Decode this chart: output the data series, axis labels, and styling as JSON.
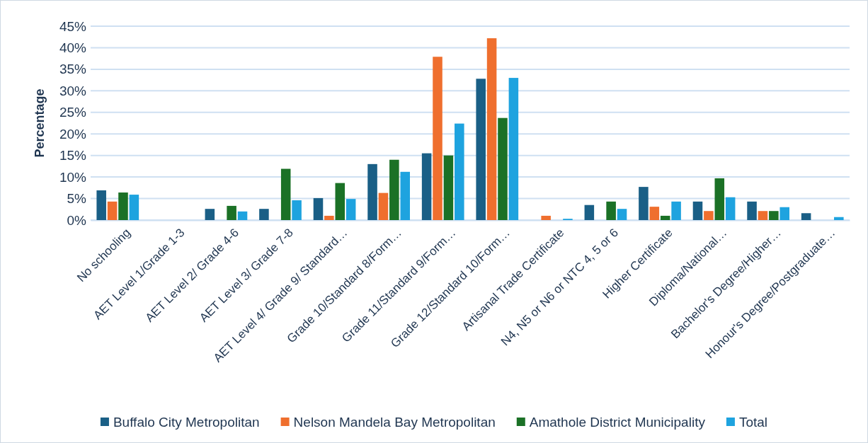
{
  "chart_data": {
    "type": "bar",
    "ylabel": "Percentage",
    "categories": [
      "No schooling",
      "AET Level 1/Grade 1-3",
      "AET Level 2/ Grade 4-6",
      "AET Level 3/ Grade 7-8",
      "AET Level 4/ Grade 9/ Standard…",
      "Grade 10/Standard 8/Form…",
      "Grade 11/Standard 9/Form…",
      "Grade 12/Standard 10/Form…",
      "Artisanal Trade Certificate",
      "N4, N5 or N6 or NTC 4, 5 or 6",
      "Higher Certificate",
      "Diploma/National…",
      "Bachelor's Degree/Higher…",
      "Honour's Degree/Postgraduate…"
    ],
    "series": [
      {
        "name": "Buffalo City Metropolitan",
        "color": "#1a5f86",
        "values": [
          6.9,
          null,
          2.6,
          2.6,
          5.1,
          13.0,
          15.5,
          32.8,
          null,
          3.5,
          7.7,
          4.3,
          4.3,
          1.6
        ]
      },
      {
        "name": "Nelson Mandela Bay Metropolitan",
        "color": "#ef6f2e",
        "values": [
          4.3,
          null,
          null,
          null,
          1.0,
          6.3,
          37.9,
          42.2,
          1.0,
          null,
          3.1,
          2.1,
          2.1,
          null
        ]
      },
      {
        "name": "Amathole District Municipality",
        "color": "#1b7126",
        "values": [
          6.4,
          null,
          3.3,
          11.9,
          8.6,
          14.0,
          15.0,
          23.7,
          null,
          4.3,
          1.0,
          9.7,
          2.1,
          null
        ]
      },
      {
        "name": "Total",
        "color": "#1ea3df",
        "values": [
          5.9,
          null,
          2.0,
          4.6,
          4.9,
          11.2,
          22.4,
          33.0,
          0.3,
          2.6,
          4.3,
          5.3,
          3.0,
          0.7
        ]
      }
    ],
    "ylim": [
      0,
      45
    ],
    "yticks": [
      {
        "value": 0,
        "label": "0%"
      },
      {
        "value": 5,
        "label": "5%"
      },
      {
        "value": 10,
        "label": "10%"
      },
      {
        "value": 15,
        "label": "15%"
      },
      {
        "value": 20,
        "label": "20%"
      },
      {
        "value": 25,
        "label": "25%"
      },
      {
        "value": 30,
        "label": "30%"
      },
      {
        "value": 35,
        "label": "35%"
      },
      {
        "value": 40,
        "label": "40%"
      },
      {
        "value": 45,
        "label": "45%"
      }
    ],
    "grid": "y",
    "legend": "bottom"
  }
}
